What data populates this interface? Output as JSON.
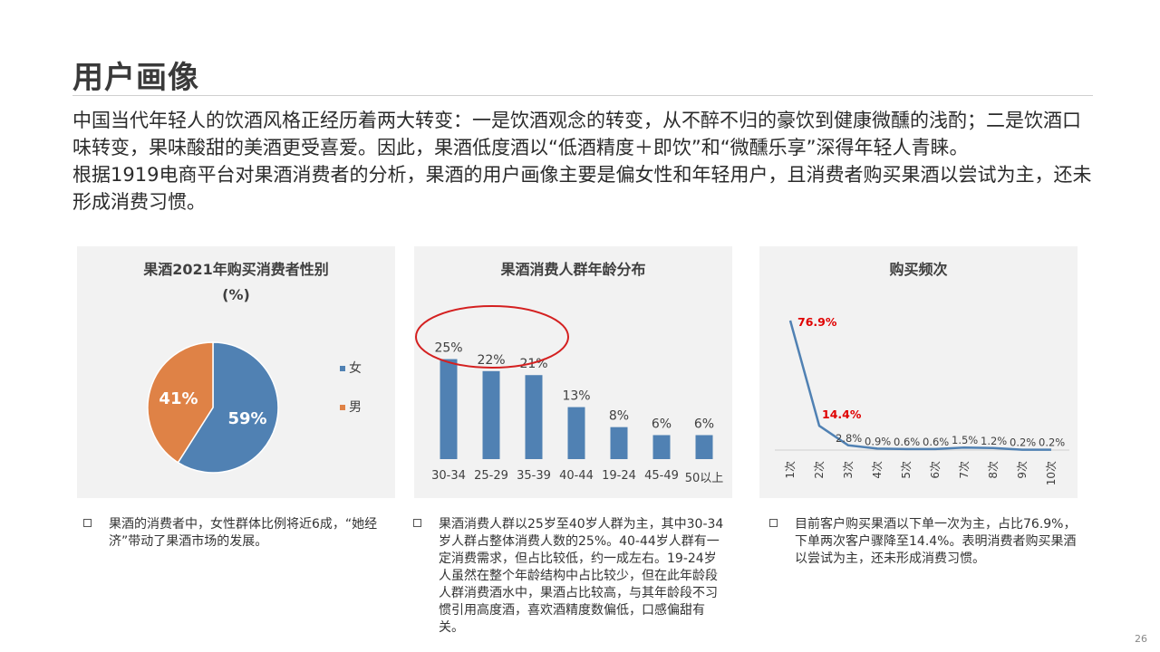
{
  "slide": {
    "title": "用户画像",
    "intro_p1": "中国当代年轻人的饮酒风格正经历着两大转变：一是饮酒观念的转变，从不醉不归的豪饮到健康微醺的浅酌；二是饮酒口味转变，果味酸甜的美酒更受喜爱。因此，果酒低度酒以“低酒精度＋即饮”和“微醺乐享”深得年轻人青睐。",
    "intro_p2": "根据1919电商平台对果酒消费者的分析，果酒的用户画像主要是偏女性和年轻用户，且消费者购买果酒以尝试为主，还未形成消费习惯。",
    "page_number": "26"
  },
  "chart_data": [
    {
      "type": "pie",
      "title_line1": "果酒2021年购买消费者性别",
      "title_line2": "(%)",
      "categories": [
        "女",
        "男"
      ],
      "values": [
        59,
        41
      ],
      "labels": [
        "59%",
        "41%"
      ],
      "colors": [
        "#5081b3",
        "#df8246"
      ],
      "legend_position": "right"
    },
    {
      "type": "bar",
      "title": "果酒消费人群年龄分布",
      "categories": [
        "30-34",
        "25-29",
        "35-39",
        "40-44",
        "19-24",
        "45-49",
        "50以上"
      ],
      "values": [
        25,
        22,
        21,
        13,
        8,
        6,
        6
      ],
      "labels": [
        "25%",
        "22%",
        "21%",
        "13%",
        "8%",
        "6%",
        "6%"
      ],
      "color": "#5081b3",
      "highlight_color": "#d42020",
      "ylim": [
        0,
        30
      ]
    },
    {
      "type": "line",
      "title": "购买频次",
      "categories": [
        "1次",
        "2次",
        "3次",
        "4次",
        "5次",
        "6次",
        "7次",
        "8次",
        "9次",
        "10次"
      ],
      "values": [
        76.9,
        14.4,
        2.8,
        0.9,
        0.6,
        0.6,
        1.5,
        1.2,
        0.2,
        0.2
      ],
      "labels": [
        "76.9%",
        "14.4%",
        "2.8%",
        "0.9%",
        "0.6%",
        "0.6%",
        "1.5%",
        "1.2%",
        "0.2%",
        "0.2%"
      ],
      "color": "#5081b3",
      "highlight_color": "#e00000",
      "ylim": [
        0,
        80
      ]
    }
  ],
  "notes": [
    "果酒的消费者中，女性群体比例将近6成，“她经济”带动了果酒市场的发展。",
    "果酒消费人群以25岁至40岁人群为主，其中30-34岁人群占整体消费人数的25%。40-44岁人群有一定消费需求，但占比较低，约一成左右。19-24岁人虽然在整个年龄结构中占比较少，但在此年龄段人群消费酒水中，果酒占比较高，与其年龄段不习惯引用高度酒，喜欢酒精度数偏低，口感偏甜有关。",
    "目前客户购买果酒以下单一次为主，占比76.9%，下单两次客户骤降至14.4%。表明消费者购买果酒以尝试为主，还未形成消费习惯。"
  ]
}
